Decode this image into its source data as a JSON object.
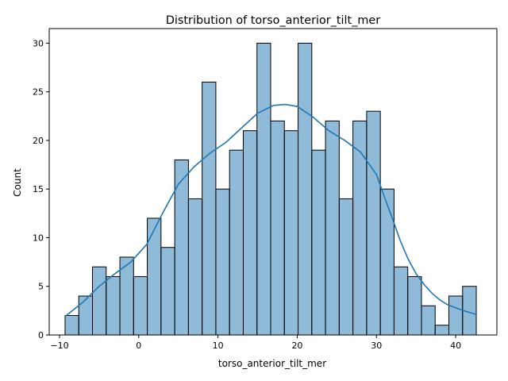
{
  "chart_data": {
    "type": "bar",
    "subtype": "histogram_with_kde",
    "title": "Distribution of torso_anterior_tilt_mer",
    "xlabel": "torso_anterior_tilt_mer",
    "ylabel": "Count",
    "xlim": [
      -11.3,
      45.2
    ],
    "ylim": [
      0,
      31.5
    ],
    "xticks": [
      -10,
      0,
      10,
      20,
      30,
      40
    ],
    "yticks": [
      0,
      5,
      10,
      15,
      20,
      25,
      30
    ],
    "grid": false,
    "legend": "none",
    "bin_start": -9.3,
    "bin_width": 1.73,
    "bins": [
      {
        "x0": -9.3,
        "x1": -7.57,
        "count": 2
      },
      {
        "x0": -7.57,
        "x1": -5.84,
        "count": 4
      },
      {
        "x0": -5.84,
        "x1": -4.11,
        "count": 7
      },
      {
        "x0": -4.11,
        "x1": -2.38,
        "count": 6
      },
      {
        "x0": -2.38,
        "x1": -0.65,
        "count": 8
      },
      {
        "x0": -0.65,
        "x1": 1.08,
        "count": 6
      },
      {
        "x0": 1.08,
        "x1": 2.81,
        "count": 12
      },
      {
        "x0": 2.81,
        "x1": 4.54,
        "count": 9
      },
      {
        "x0": 4.54,
        "x1": 6.27,
        "count": 18
      },
      {
        "x0": 6.27,
        "x1": 8.0,
        "count": 14
      },
      {
        "x0": 8.0,
        "x1": 9.73,
        "count": 26
      },
      {
        "x0": 9.73,
        "x1": 11.46,
        "count": 15
      },
      {
        "x0": 11.46,
        "x1": 13.19,
        "count": 19
      },
      {
        "x0": 13.19,
        "x1": 14.92,
        "count": 21
      },
      {
        "x0": 14.92,
        "x1": 16.65,
        "count": 30
      },
      {
        "x0": 16.65,
        "x1": 18.38,
        "count": 22
      },
      {
        "x0": 18.38,
        "x1": 20.11,
        "count": 21
      },
      {
        "x0": 20.11,
        "x1": 21.84,
        "count": 30
      },
      {
        "x0": 21.84,
        "x1": 23.57,
        "count": 19
      },
      {
        "x0": 23.57,
        "x1": 25.3,
        "count": 22
      },
      {
        "x0": 25.3,
        "x1": 27.03,
        "count": 14
      },
      {
        "x0": 27.03,
        "x1": 28.76,
        "count": 22
      },
      {
        "x0": 28.76,
        "x1": 30.49,
        "count": 23
      },
      {
        "x0": 30.49,
        "x1": 32.22,
        "count": 15
      },
      {
        "x0": 32.22,
        "x1": 33.95,
        "count": 7
      },
      {
        "x0": 33.95,
        "x1": 35.68,
        "count": 6
      },
      {
        "x0": 35.68,
        "x1": 37.41,
        "count": 3
      },
      {
        "x0": 37.41,
        "x1": 39.14,
        "count": 1
      },
      {
        "x0": 39.14,
        "x1": 40.87,
        "count": 4
      },
      {
        "x0": 40.87,
        "x1": 42.6,
        "count": 5
      }
    ],
    "kde": {
      "x": [
        -9.3,
        -7,
        -5,
        -3,
        -1,
        1,
        3,
        5,
        7,
        9,
        11,
        13,
        15,
        17,
        18.5,
        20,
        22,
        24,
        26,
        28,
        30,
        31,
        32,
        33,
        34,
        35,
        36,
        37,
        38,
        39,
        40,
        41,
        42.6
      ],
      "y": [
        1.9,
        3.4,
        5.0,
        6.3,
        7.5,
        9.3,
        12.5,
        15.5,
        17.3,
        18.7,
        19.8,
        21.3,
        22.8,
        23.6,
        23.7,
        23.5,
        22.4,
        21.0,
        20.0,
        18.8,
        16.5,
        14.2,
        12.0,
        9.7,
        7.8,
        6.3,
        5.2,
        4.3,
        3.6,
        3.1,
        2.8,
        2.5,
        2.1
      ]
    },
    "colors": {
      "bar_fill": "#1f77b4",
      "bar_fill_opacity": 0.5,
      "bar_edge": "#000000",
      "kde_line": "#1f77b4",
      "axes": "#000000"
    }
  }
}
